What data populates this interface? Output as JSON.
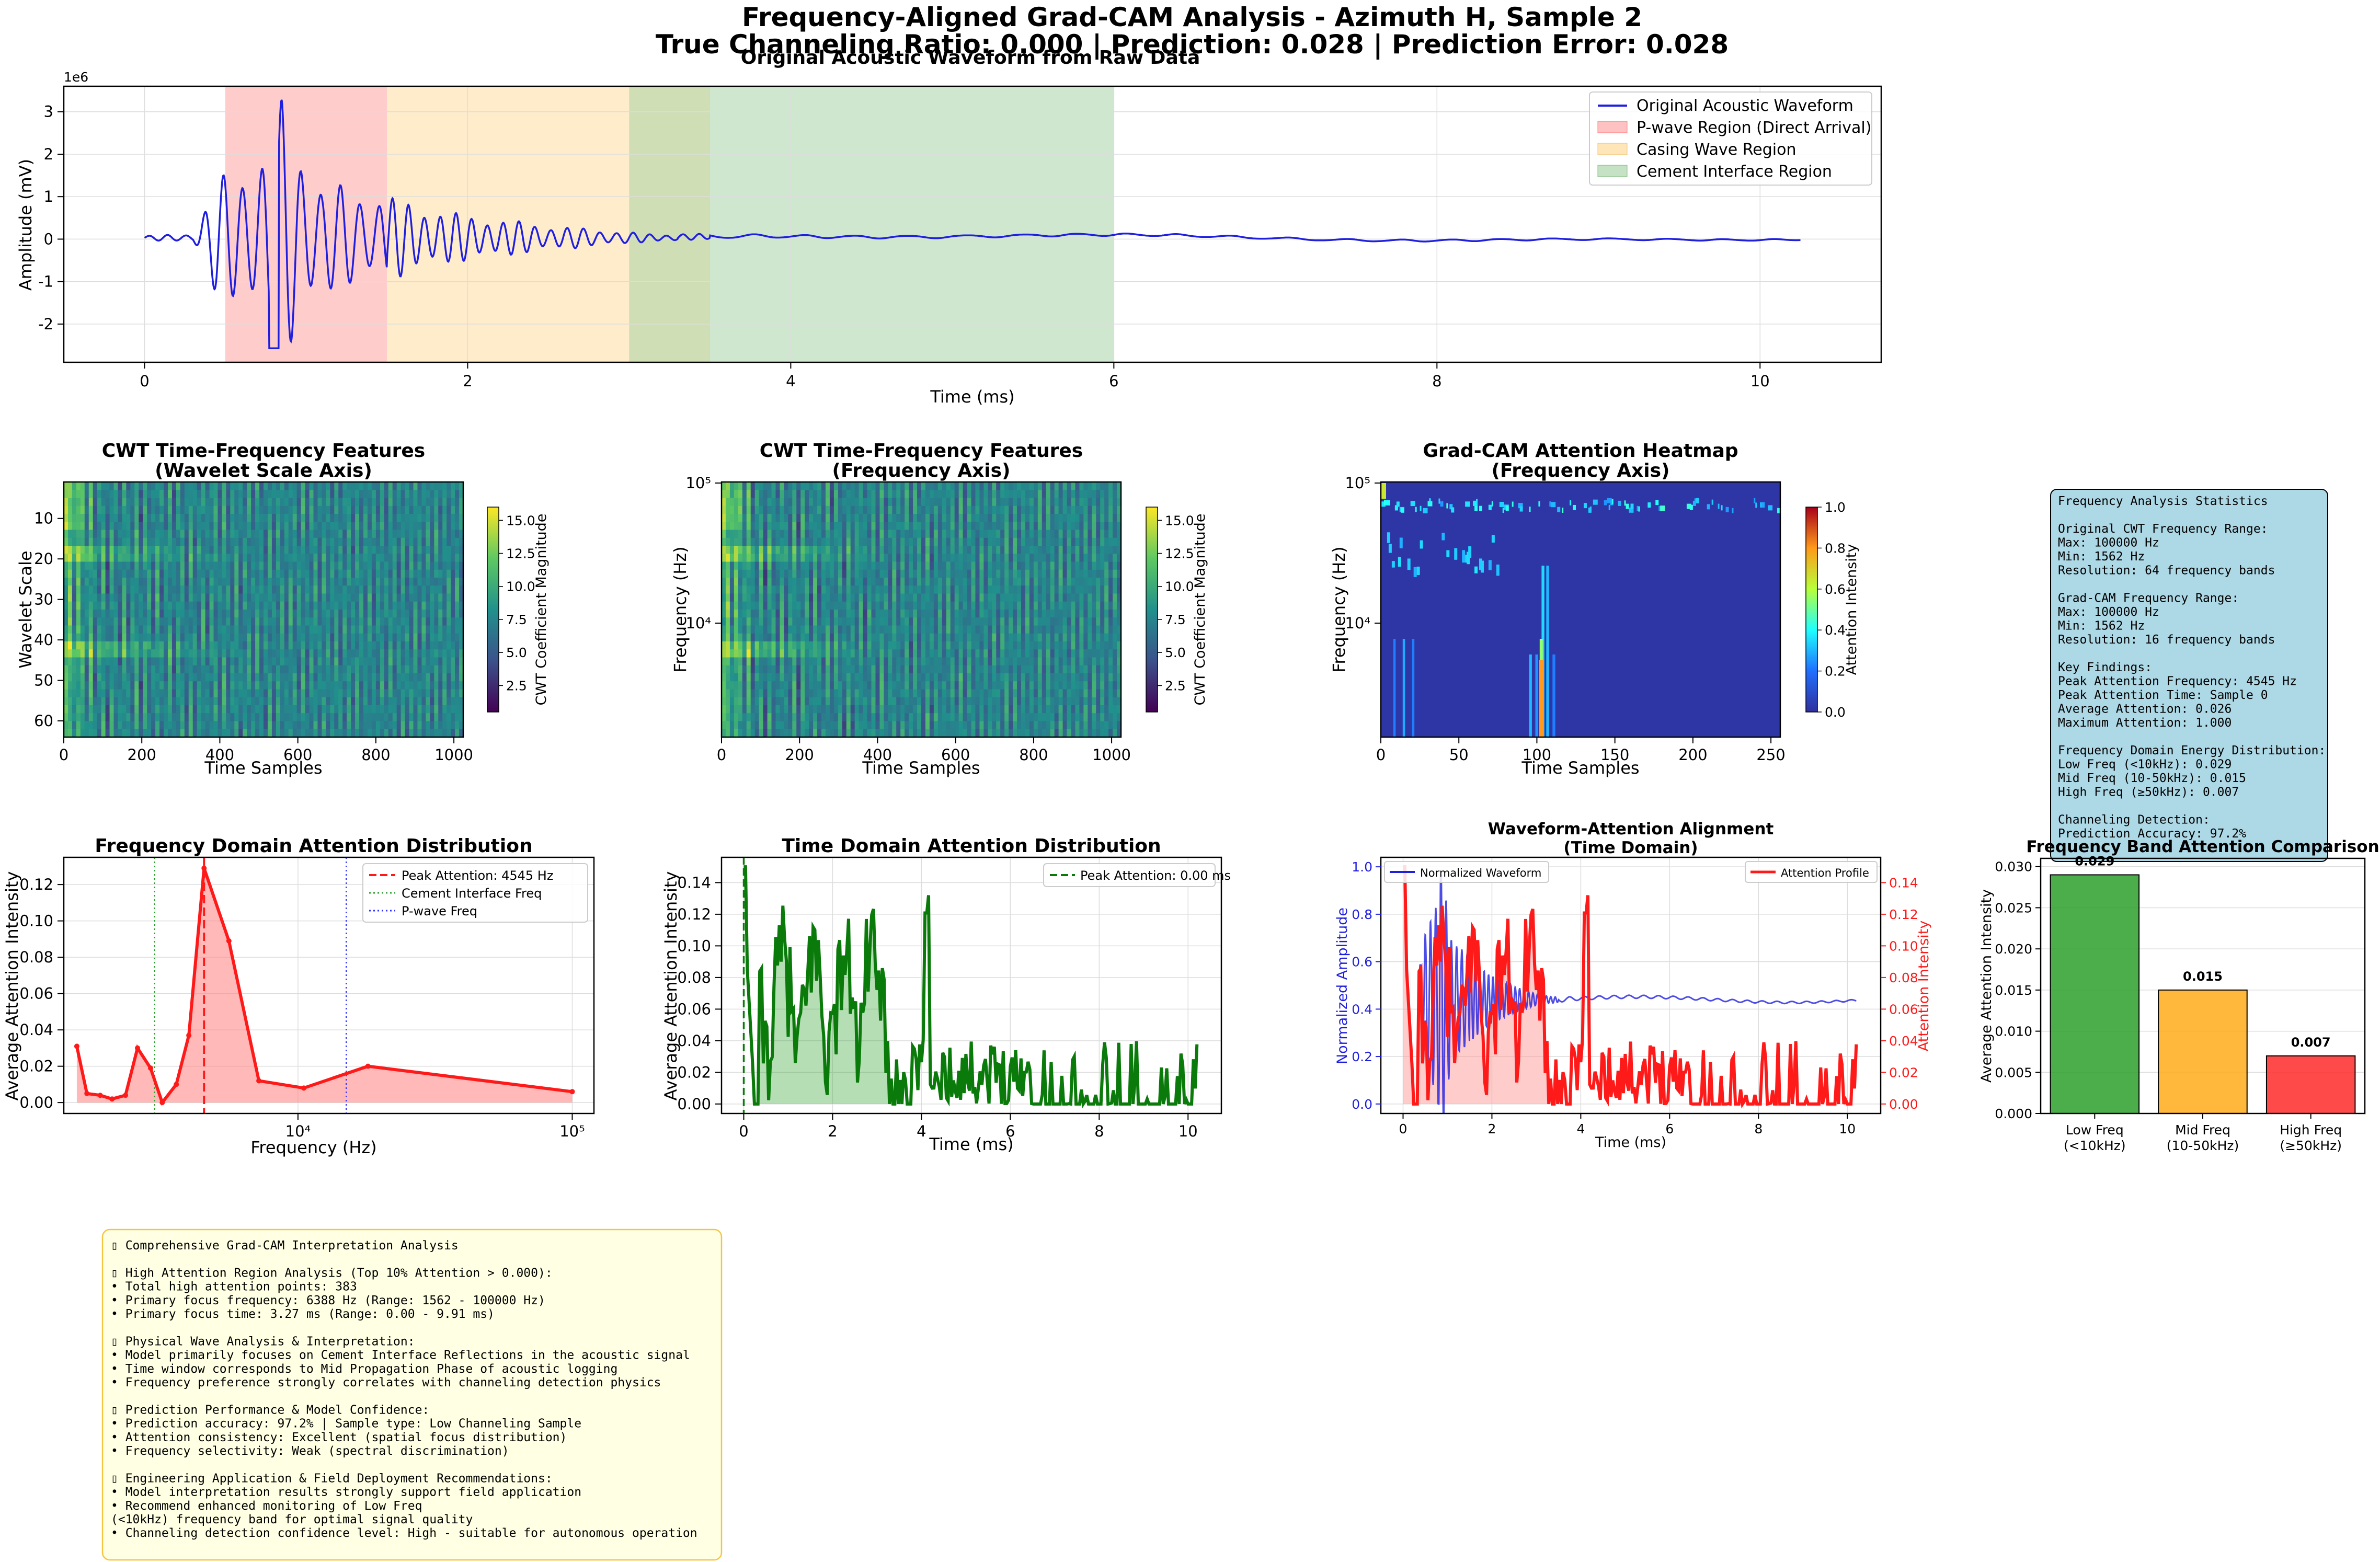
{
  "suptitle": {
    "line1": "Frequency-Aligned Grad-CAM Analysis - Azimuth H, Sample 2",
    "line2": "True Channeling Ratio: 0.000 | Prediction: 0.028 | Prediction Error: 0.028"
  },
  "chart_data": [
    {
      "id": "waveform",
      "type": "line",
      "title": "Original Acoustic Waveform from Raw Data",
      "xlabel": "Time (ms)",
      "ylabel": "Amplitude (mV)",
      "y_offset_label": "1e6",
      "xlim": [
        -0.5,
        10.75
      ],
      "ylim": [
        -2.9,
        3.6
      ],
      "xticks": [
        0,
        2,
        4,
        6,
        8,
        10
      ],
      "yticks": [
        -2,
        -1,
        0,
        1,
        2,
        3
      ],
      "grid": true,
      "legend_position": "top-right",
      "series_name": "Original Acoustic Waveform",
      "series_color": "#1f1fe0",
      "regions": [
        {
          "name": "P-wave Region (Direct Arrival)",
          "from": 0.5,
          "to": 1.5,
          "color": "#ff9999"
        },
        {
          "name": "Casing Wave Region",
          "from": 1.5,
          "to": 3.5,
          "color": "#ffe0a8"
        },
        {
          "name": "Cement Interface Region",
          "from": 3.0,
          "to": 6.0,
          "color": "#9fcf9f"
        }
      ],
      "envelope": [
        [
          0.0,
          0.05
        ],
        [
          0.3,
          0.1
        ],
        [
          0.45,
          1.4
        ],
        [
          0.6,
          1.8
        ],
        [
          0.75,
          2.2
        ],
        [
          0.85,
          3.3
        ],
        [
          0.95,
          2.5
        ],
        [
          1.1,
          1.3
        ],
        [
          1.3,
          1.2
        ],
        [
          1.6,
          0.9
        ],
        [
          1.9,
          0.6
        ],
        [
          2.2,
          0.45
        ],
        [
          2.5,
          0.3
        ],
        [
          2.8,
          0.2
        ],
        [
          3.1,
          0.1
        ],
        [
          3.5,
          0.06
        ],
        [
          4.0,
          0.04
        ],
        [
          10.25,
          0.02
        ]
      ]
    },
    {
      "id": "cwt_scale",
      "type": "heatmap",
      "title": "CWT Time-Frequency Features",
      "subtitle": "(Wavelet Scale Axis)",
      "xlabel": "Time Samples",
      "ylabel": "Wavelet Scale",
      "xlim": [
        0,
        1024
      ],
      "ylim": [
        64,
        1
      ],
      "xticks": [
        0,
        200,
        400,
        600,
        800,
        1000
      ],
      "yticks": [
        10,
        20,
        30,
        40,
        50,
        60
      ],
      "colorbar_label": "CWT Coefficient Magnitude",
      "colorbar_ticks": [
        "2.5",
        "5.0",
        "7.5",
        "10.0",
        "12.5",
        "15.0"
      ],
      "colorbar_range": [
        0.5,
        16.0
      ],
      "colormap": "viridis"
    },
    {
      "id": "cwt_freq",
      "type": "heatmap",
      "title": "CWT Time-Frequency Features",
      "subtitle": "(Frequency Axis)",
      "xlabel": "Time Samples",
      "ylabel": "Frequency (Hz)",
      "xlim": [
        0,
        1024
      ],
      "ylim": [
        1562,
        100000
      ],
      "yscale": "log",
      "xticks": [
        0,
        200,
        400,
        600,
        800,
        1000
      ],
      "ytick_labels": [
        "10⁴",
        "10⁵"
      ],
      "colorbar_label": "CWT Coefficient Magnitude",
      "colorbar_ticks": [
        "2.5",
        "5.0",
        "7.5",
        "10.0",
        "12.5",
        "15.0"
      ],
      "colorbar_range": [
        0.5,
        16.0
      ],
      "colormap": "viridis"
    },
    {
      "id": "gradcam",
      "type": "heatmap",
      "title": "Grad-CAM Attention Heatmap",
      "subtitle": "(Frequency Axis)",
      "xlabel": "Time Samples",
      "ylabel": "Frequency (Hz)",
      "xlim": [
        0,
        256
      ],
      "ylim": [
        1562,
        100000
      ],
      "yscale": "log",
      "xticks": [
        0,
        50,
        100,
        150,
        200,
        250
      ],
      "ytick_labels": [
        "10⁴",
        "10⁵"
      ],
      "colorbar_label": "Attention Intensity",
      "colorbar_ticks": [
        "0.0",
        "0.2",
        "0.4",
        "0.6",
        "0.8",
        "1.0"
      ],
      "colormap": "jet"
    },
    {
      "id": "freq_attention",
      "type": "line",
      "title": "Frequency Domain Attention Distribution",
      "xlabel": "Frequency (Hz)",
      "ylabel": "Average Attention Intensity",
      "xscale": "log",
      "xlim": [
        1400,
        120000
      ],
      "ylim": [
        -0.006,
        0.135
      ],
      "ytick_labels": [
        "0.00",
        "0.02",
        "0.04",
        "0.06",
        "0.08",
        "0.10",
        "0.12"
      ],
      "xtick_labels": [
        "10⁴",
        "10⁵"
      ],
      "grid": true,
      "legend_position": "top-right",
      "x": [
        1562,
        1700,
        1900,
        2100,
        2350,
        2600,
        2900,
        3200,
        3600,
        4000,
        4545,
        5600,
        7200,
        10500,
        18000,
        100000
      ],
      "y": [
        0.031,
        0.005,
        0.004,
        0.002,
        0.004,
        0.03,
        0.019,
        0.0,
        0.01,
        0.037,
        0.129,
        0.089,
        0.012,
        0.008,
        0.02,
        0.006
      ],
      "vlines": [
        {
          "name": "Peak Attention: 4545 Hz",
          "x": 4545,
          "color": "#ff1a1a",
          "style": "dashed"
        },
        {
          "name": "Cement Interface Freq",
          "x": 3000,
          "color": "#2ca02c",
          "style": "dotted"
        },
        {
          "name": "P-wave Freq",
          "x": 15000,
          "color": "#3333ff",
          "style": "dotted"
        }
      ]
    },
    {
      "id": "time_attention",
      "type": "line",
      "title": "Time Domain Attention Distribution",
      "xlabel": "Time (ms)",
      "ylabel": "Average Attention Intensity",
      "xlim": [
        -0.5,
        10.75
      ],
      "ylim": [
        -0.006,
        0.156
      ],
      "xticks": [
        0,
        2,
        4,
        6,
        8,
        10
      ],
      "ytick_labels": [
        "0.00",
        "0.02",
        "0.04",
        "0.06",
        "0.08",
        "0.10",
        "0.12",
        "0.14"
      ],
      "grid": true,
      "legend_position": "top-right",
      "peak_label": "Peak Attention: 0.00 ms",
      "peak_x": 0.0,
      "series_color": "#0a7a0a"
    },
    {
      "id": "alignment",
      "type": "line",
      "title": "Waveform-Attention Alignment",
      "subtitle": "(Time Domain)",
      "xlabel": "Time (ms)",
      "ylabel_left": "Normalized Amplitude",
      "ylabel_right": "Attention Intensity",
      "xlim": [
        -0.5,
        10.75
      ],
      "ylim_left": [
        -0.04,
        1.04
      ],
      "ylim_right": [
        -0.006,
        0.156
      ],
      "xticks": [
        0,
        2,
        4,
        6,
        8,
        10
      ],
      "ytick_labels_left": [
        "0.0",
        "0.2",
        "0.4",
        "0.6",
        "0.8",
        "1.0"
      ],
      "ytick_labels_right": [
        "0.00",
        "0.02",
        "0.04",
        "0.06",
        "0.08",
        "0.10",
        "0.12",
        "0.14"
      ],
      "legend_left": "Normalized Waveform",
      "legend_right": "Attention Profile",
      "grid": true
    },
    {
      "id": "band_comparison",
      "type": "bar",
      "title": "Frequency Band Attention Comparison",
      "ylabel": "Average Attention Intensity",
      "categories": [
        "Low Freq\n(<10kHz)",
        "Mid Freq\n(10-50kHz)",
        "High Freq\n(≥50kHz)"
      ],
      "category_lines": [
        [
          "Low Freq",
          "(<10kHz)"
        ],
        [
          "Mid Freq",
          "(10-50kHz)"
        ],
        [
          "High Freq",
          "(≥50kHz)"
        ]
      ],
      "values": [
        0.029,
        0.015,
        0.007
      ],
      "value_labels": [
        "0.029",
        "0.015",
        "0.007"
      ],
      "colors": [
        "#2ca02c",
        "#ffaa1a",
        "#ff2a2a"
      ],
      "ylim": [
        0,
        0.031
      ],
      "ytick_labels": [
        "0.000",
        "0.005",
        "0.010",
        "0.015",
        "0.020",
        "0.025",
        "0.030"
      ],
      "grid": true
    }
  ],
  "stats_box": {
    "lines": [
      "Frequency Analysis Statistics",
      "",
      "Original CWT Frequency Range:",
      "  Max: 100000 Hz",
      "  Min: 1562 Hz",
      "  Resolution: 64 frequency bands",
      "",
      "Grad-CAM Frequency Range:",
      "  Max: 100000 Hz",
      "  Min: 1562 Hz",
      "  Resolution: 16 frequency bands",
      "",
      "Key Findings:",
      "  Peak Attention Frequency: 4545 Hz",
      "  Peak Attention Time: Sample 0",
      "  Average Attention: 0.026",
      "  Maximum Attention: 1.000",
      "",
      "Frequency Domain Energy Distribution:",
      "  Low Freq (<10kHz): 0.029",
      "  Mid Freq (10-50kHz): 0.015",
      "  High Freq (≥50kHz): 0.007",
      "",
      "Channeling Detection:",
      "  Prediction Accuracy: 97.2%"
    ]
  },
  "interpretation_box": {
    "lines": [
      "▯ Comprehensive Grad-CAM Interpretation Analysis",
      "",
      "▯ High Attention Region Analysis (Top 10% Attention > 0.000):",
      "   • Total high attention points: 383",
      "   • Primary focus frequency: 6388 Hz (Range: 1562 - 100000 Hz)",
      "   • Primary focus time: 3.27 ms (Range: 0.00 - 9.91 ms)",
      "",
      "▯ Physical Wave Analysis & Interpretation:",
      "   • Model primarily focuses on Cement Interface Reflections in the acoustic signal",
      "   • Time window corresponds to Mid Propagation Phase of acoustic logging",
      "   • Frequency preference strongly correlates with channeling detection physics",
      "",
      "▯ Prediction Performance & Model Confidence:",
      "   • Prediction accuracy: 97.2% | Sample type: Low Channeling Sample",
      "   • Attention consistency: Excellent (spatial focus distribution)",
      "   • Frequency selectivity: Weak (spectral discrimination)",
      "",
      "▯ Engineering Application & Field Deployment Recommendations:",
      "   • Model interpretation results strongly support field application",
      "   • Recommend enhanced monitoring of Low Freq",
      "(<10kHz) frequency band for optimal signal quality",
      "   • Channeling detection confidence level: High - suitable for autonomous operation"
    ]
  }
}
